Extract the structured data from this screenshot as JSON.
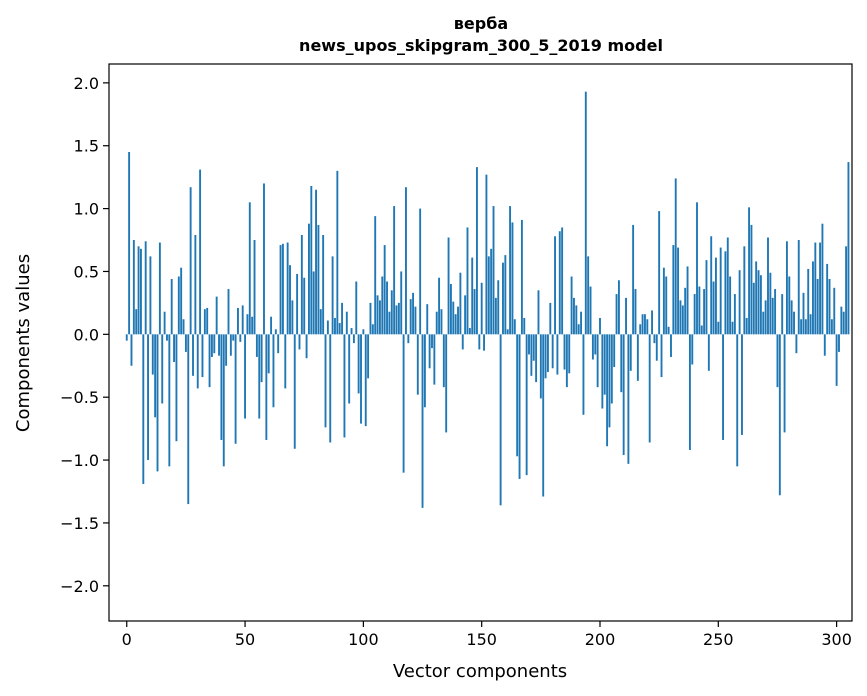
{
  "chart_data": {
    "type": "bar",
    "title": "верба",
    "subtitle": "news_upos_skipgram_300_5_2019 model",
    "xlabel": "Vector components",
    "ylabel": "Components values",
    "xlim": [
      -7.5,
      306.5
    ],
    "ylim": [
      -2.28,
      2.15
    ],
    "xticks": [
      0,
      50,
      100,
      150,
      200,
      250,
      300
    ],
    "yticks": [
      -2.0,
      -1.5,
      -1.0,
      -0.5,
      0.0,
      0.5,
      1.0,
      1.5,
      2.0
    ],
    "ytick_labels": [
      "−2.0",
      "−1.5",
      "−1.0",
      "−0.5",
      "0.0",
      "0.5",
      "1.0",
      "1.5",
      "2.0"
    ],
    "color": "#1f77b4",
    "grid": false,
    "values": [
      -0.05,
      1.45,
      -0.25,
      0.75,
      0.2,
      0.7,
      0.68,
      -1.19,
      0.74,
      -1.0,
      0.62,
      -0.32,
      -0.66,
      -1.09,
      0.73,
      -0.55,
      0.18,
      -0.05,
      -1.05,
      0.44,
      -0.22,
      -0.85,
      0.46,
      0.53,
      0.12,
      -0.14,
      -1.35,
      1.17,
      -0.33,
      0.79,
      -0.43,
      1.31,
      -0.34,
      0.2,
      0.21,
      -0.42,
      -0.18,
      -0.15,
      0.3,
      -0.17,
      -0.84,
      -1.05,
      -0.25,
      0.36,
      -0.17,
      -0.05,
      -0.87,
      0.21,
      -0.06,
      0.23,
      -0.67,
      0.16,
      1.05,
      0.14,
      0.75,
      -0.18,
      -0.67,
      -0.38,
      1.2,
      -0.84,
      -0.31,
      0.14,
      -0.58,
      0.04,
      -0.15,
      0.71,
      0.72,
      -0.43,
      0.73,
      0.55,
      0.27,
      -0.91,
      0.48,
      -0.12,
      0.79,
      0.45,
      -0.19,
      0.88,
      1.18,
      0.5,
      1.15,
      0.87,
      0.2,
      0.79,
      -0.74,
      0.11,
      -0.86,
      0.62,
      0.13,
      1.3,
      0.09,
      0.25,
      -0.82,
      0.18,
      -0.55,
      0.05,
      -0.07,
      0.42,
      -0.47,
      -0.71,
      0.04,
      -0.73,
      -0.35,
      0.25,
      0.08,
      0.94,
      0.31,
      0.27,
      0.46,
      0.71,
      0.42,
      0.18,
      0.35,
      1.02,
      0.23,
      0.25,
      0.5,
      -1.1,
      1.17,
      -0.07,
      0.28,
      0.33,
      0.22,
      -0.48,
      1.0,
      -1.38,
      -0.58,
      0.24,
      -0.27,
      -0.11,
      -0.4,
      0.18,
      0.45,
      0.2,
      -0.42,
      -0.78,
      0.77,
      0.4,
      0.26,
      0.16,
      0.22,
      0.49,
      -0.12,
      0.31,
      0.85,
      0.05,
      0.61,
      0.36,
      1.33,
      -0.12,
      0.41,
      -0.13,
      1.27,
      0.62,
      0.68,
      1.02,
      0.29,
      0.43,
      -1.36,
      0.57,
      0.63,
      0.04,
      1.02,
      0.89,
      0.12,
      -0.97,
      -1.15,
      0.91,
      0.13,
      -1.12,
      -0.16,
      -0.33,
      -0.21,
      -0.38,
      0.35,
      -0.51,
      -1.29,
      -0.35,
      -0.3,
      0.25,
      -0.27,
      0.78,
      -0.32,
      0.82,
      0.85,
      -0.28,
      -0.42,
      -0.31,
      0.46,
      0.29,
      0.23,
      0.08,
      0.18,
      -0.64,
      1.93,
      0.62,
      0.38,
      -0.2,
      -0.16,
      -0.42,
      0.13,
      -0.59,
      -0.48,
      -0.89,
      -0.74,
      -0.55,
      -0.26,
      0.32,
      0.43,
      -0.46,
      -0.96,
      0.29,
      -1.03,
      -0.29,
      0.87,
      0.36,
      -0.37,
      0.08,
      0.16,
      0.16,
      0.12,
      -0.86,
      0.19,
      -0.07,
      -0.21,
      0.98,
      -0.34,
      0.53,
      0.46,
      0.06,
      -0.18,
      0.71,
      1.24,
      0.69,
      0.27,
      0.23,
      0.37,
      0.54,
      -0.92,
      -0.24,
      0.32,
      1.05,
      0.38,
      0.07,
      0.36,
      0.59,
      -0.29,
      0.78,
      0.42,
      0.61,
      0.1,
      0.69,
      -0.84,
      0.66,
      0.77,
      0.46,
      0.1,
      0.32,
      -1.05,
      0.51,
      -0.8,
      0.7,
      0.13,
      1.01,
      0.87,
      0.41,
      0.58,
      0.51,
      0.47,
      0.18,
      0.27,
      0.77,
      0.49,
      0.29,
      0.36,
      -0.42,
      -1.28,
      0.32,
      -0.78,
      0.74,
      0.46,
      0.27,
      0.18,
      -0.15,
      0.75,
      0.12,
      0.33,
      0.12,
      0.52,
      0.16,
      0.58,
      0.73,
      0.44,
      0.73,
      0.88,
      -0.17,
      0.56,
      0.44,
      0.12,
      0.37,
      -0.41,
      -0.14,
      0.22,
      0.18,
      0.7,
      1.37
    ]
  }
}
